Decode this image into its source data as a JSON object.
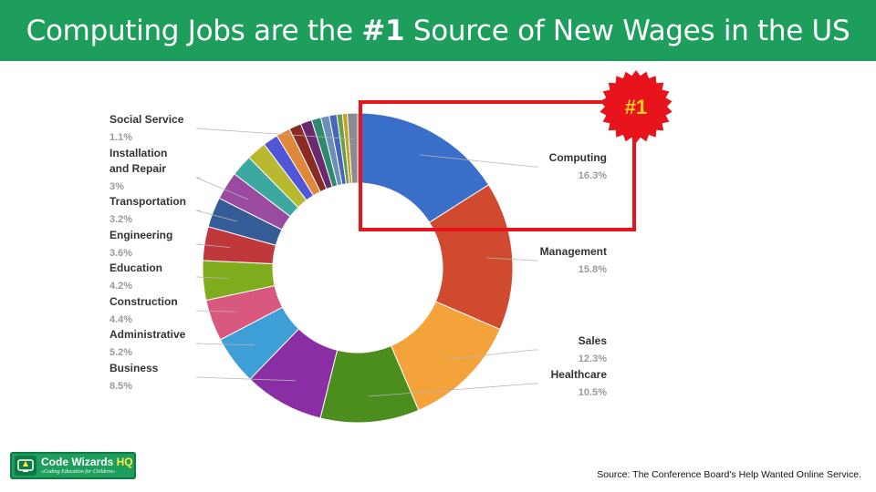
{
  "header": {
    "title_before": "Computing Jobs are the ",
    "title_bold": "#1",
    "title_after": " Source of New Wages in the US"
  },
  "badge": {
    "text": "#1"
  },
  "footer": {
    "source": "Source: The Conference Board's Help Wanted Online Service."
  },
  "logo": {
    "name": "Code Wizards",
    "name_accent": "HQ",
    "tagline": "«Coding Education for Children»"
  },
  "colors": {
    "banner": "#1e9e5d",
    "highlight_box": "#e8141b",
    "badge": "#e8141b",
    "badge_text": "#ffd21f"
  },
  "chart_data": {
    "type": "pie",
    "donut": true,
    "highlighted_category": "Computing",
    "labeled_slices": [
      {
        "name": "Computing",
        "value": 16.3,
        "label": "16.3%",
        "color": "#3a6fc9"
      },
      {
        "name": "Management",
        "value": 15.8,
        "label": "15.8%",
        "color": "#cf4a2f"
      },
      {
        "name": "Sales",
        "value": 12.3,
        "label": "12.3%",
        "color": "#f4a23a"
      },
      {
        "name": "Healthcare",
        "value": 10.5,
        "label": "10.5%",
        "color": "#4b8e1e"
      },
      {
        "name": "Business",
        "value": 8.5,
        "label": "8.5%",
        "color": "#8a2ea3"
      },
      {
        "name": "Administrative",
        "value": 5.2,
        "label": "5.2%",
        "color": "#3d9fd6"
      },
      {
        "name": "Construction",
        "value": 4.4,
        "label": "4.4%",
        "color": "#d9587e"
      },
      {
        "name": "Education",
        "value": 4.2,
        "label": "4.2%",
        "color": "#7fac1c"
      },
      {
        "name": "Engineering",
        "value": 3.6,
        "label": "3.6%",
        "color": "#c0383a"
      },
      {
        "name": "Transportation",
        "value": 3.2,
        "label": "3.2%",
        "color": "#345c96"
      },
      {
        "name": "Installation\nand Repair",
        "value": 3,
        "label": "3%",
        "color": "#9a4aa0"
      },
      {
        "name": "Social Service",
        "value": 1.1,
        "label": "1.1%",
        "color": "#8c8c8c"
      }
    ],
    "unlabeled_slices": [
      {
        "value": 2.3,
        "color": "#3da8a0"
      },
      {
        "value": 2.1,
        "color": "#b8b831"
      },
      {
        "value": 1.6,
        "color": "#5156d6"
      },
      {
        "value": 1.5,
        "color": "#e0883a"
      },
      {
        "value": 1.3,
        "color": "#8a2a25"
      },
      {
        "value": 1.2,
        "color": "#6a2a70"
      },
      {
        "value": 1,
        "color": "#2f8a6d"
      },
      {
        "value": 0.9,
        "color": "#6b8fb8"
      },
      {
        "value": 0.8,
        "color": "#4666b8"
      },
      {
        "value": 0.6,
        "color": "#6a9e4a"
      },
      {
        "value": 0.5,
        "color": "#c6a224"
      }
    ]
  }
}
